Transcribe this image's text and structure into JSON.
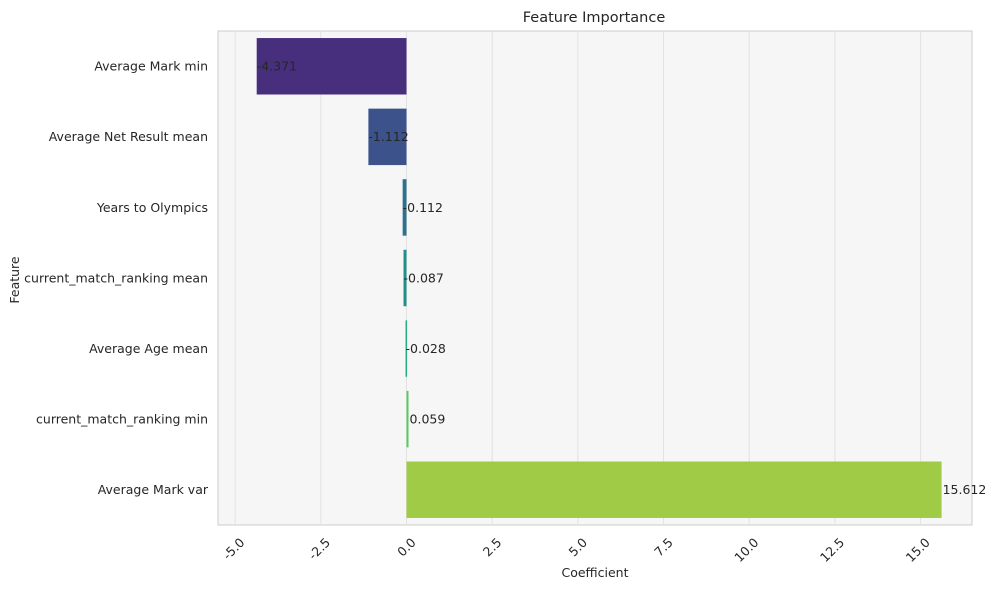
{
  "chart_data": {
    "type": "bar",
    "orientation": "horizontal",
    "title": "Feature Importance",
    "xlabel": "Coefficient",
    "ylabel": "Feature",
    "xlim": [
      -5.5,
      16.5
    ],
    "xticks": [
      -5.0,
      -2.5,
      0.0,
      2.5,
      5.0,
      7.5,
      10.0,
      12.5,
      15.0
    ],
    "xtick_labels": [
      "-5.0",
      "-2.5",
      "0.0",
      "2.5",
      "5.0",
      "7.5",
      "10.0",
      "12.5",
      "15.0"
    ],
    "grid": "vertical",
    "categories": [
      "Average Mark min",
      "Average Net Result mean",
      "Years to Olympics",
      "current_match_ranking mean",
      "Average Age mean",
      "current_match_ranking min",
      "Average Mark var"
    ],
    "values": [
      -4.371,
      -1.112,
      -0.112,
      -0.087,
      -0.028,
      0.059,
      15.612
    ],
    "value_labels": [
      "-4.371",
      "-1.112",
      "-0.112",
      "-0.087",
      "-0.028",
      "0.059",
      "15.612"
    ],
    "colors": [
      "#472f7d",
      "#3b528b",
      "#2c718e",
      "#21908d",
      "#27ad81",
      "#5cc863",
      "#a0cb47"
    ]
  }
}
